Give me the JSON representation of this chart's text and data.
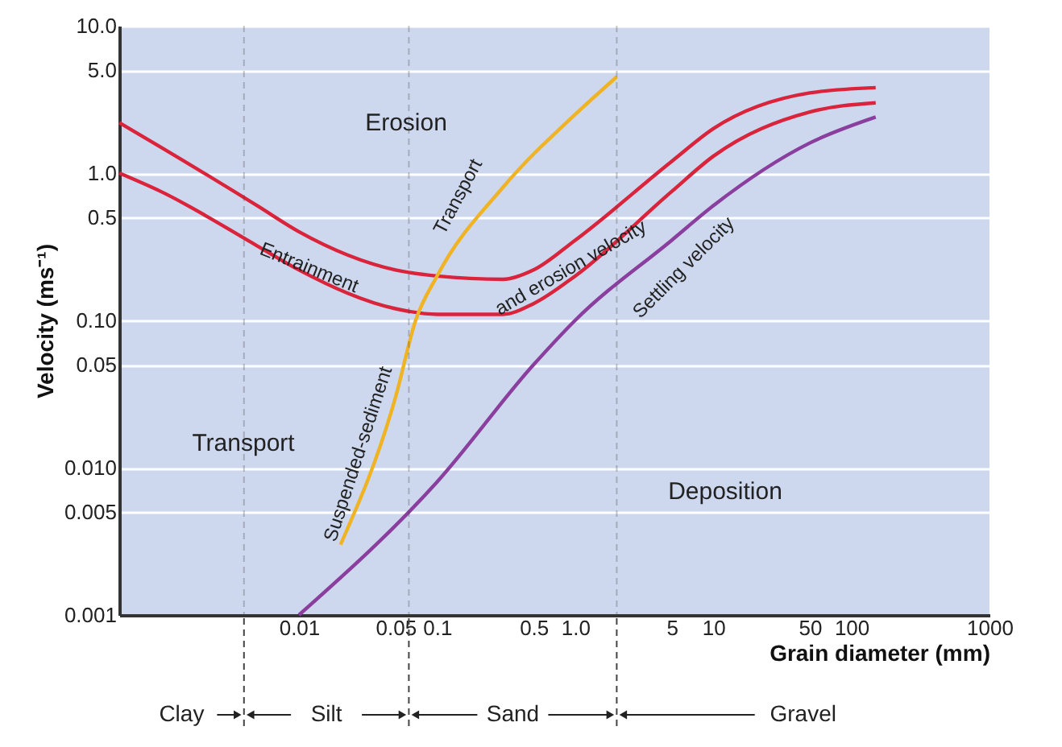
{
  "chart_data": {
    "type": "line",
    "xlabel": "Grain diameter (mm)",
    "ylabel": "Velocity (ms⁻¹)",
    "log": "xy",
    "grid": "y",
    "line_style": "solid",
    "marker": "none",
    "xlim": [
      0.0005,
      1000
    ],
    "ylim": [
      0.001,
      10
    ],
    "xticks": [
      0.01,
      0.05,
      0.1,
      0.5,
      {
        "value": 1,
        "label": "1.0"
      },
      5,
      10,
      50,
      100,
      1000
    ],
    "yticks": [
      0.001,
      0.005,
      {
        "value": 0.01,
        "label": "0.010"
      },
      0.05,
      {
        "value": 0.1,
        "label": "0.10"
      },
      0.5,
      {
        "value": 1,
        "label": "1.0"
      },
      {
        "value": 5,
        "label": "5.0"
      },
      {
        "value": 10,
        "label": "10.0"
      }
    ],
    "series": [
      {
        "color": "#d9243c",
        "x": [
          0.0005,
          0.001,
          0.005,
          0.01,
          0.05,
          0.1,
          0.3,
          0.5,
          1,
          5,
          10,
          50,
          150
        ],
        "values": [
          2.2,
          1.5,
          0.6,
          0.4,
          0.22,
          0.2,
          0.19,
          0.22,
          0.35,
          1.2,
          2.0,
          3.5,
          3.8
        ]
      },
      {
        "color": "#d9243c",
        "x": [
          0.0005,
          0.001,
          0.005,
          0.01,
          0.05,
          0.1,
          0.3,
          0.5,
          1,
          5,
          10,
          50,
          150
        ],
        "values": [
          1.0,
          0.75,
          0.32,
          0.22,
          0.12,
          0.11,
          0.11,
          0.13,
          0.2,
          0.75,
          1.3,
          2.6,
          3.0
        ]
      },
      {
        "color": "#8a3f9e",
        "x": [
          0.01,
          0.1,
          0.5,
          1,
          5,
          10,
          50,
          150
        ],
        "values": [
          0.001,
          0.008,
          0.05,
          0.1,
          0.35,
          0.6,
          1.6,
          2.4
        ]
      },
      {
        "color": "#f0b323",
        "x": [
          0.02,
          0.05,
          0.07,
          0.1,
          0.3,
          1,
          2
        ],
        "values": [
          0.003,
          0.03,
          0.1,
          0.2,
          0.8,
          2.5,
          4.5
        ]
      }
    ],
    "annotations": [
      "Erosion",
      "Transport",
      "Deposition",
      "Entrainment",
      "and erosion velocity",
      "Settling velocity",
      "Suspended-sediment",
      "Transport",
      "Clay",
      "Silt",
      "Sand",
      "Gravel"
    ],
    "ref_lines": [
      {
        "axis": "x",
        "value": 0.004,
        "label": null,
        "line_style": "dashed",
        "color": "#444444"
      },
      {
        "axis": "x",
        "value": 0.0625,
        "label": null,
        "line_style": "dashed",
        "color": "#444444"
      },
      {
        "axis": "x",
        "value": 2,
        "label": null,
        "line_style": "dashed",
        "color": "#444444"
      }
    ]
  }
}
